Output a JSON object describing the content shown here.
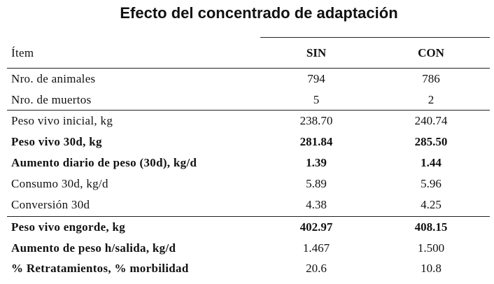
{
  "title": "Efecto del concentrado de adaptación",
  "columns": {
    "item": "Ítem",
    "sin": "SIN",
    "con": "CON"
  },
  "rows": [
    {
      "item": "Nro. de animales",
      "sin": "794",
      "con": "786",
      "bold": false
    },
    {
      "item": "Nro. de muertos",
      "sin": "5",
      "con": "2",
      "bold": false
    },
    {
      "item": "Peso vivo inicial, kg",
      "sin": "238.70",
      "con": "240.74",
      "bold": false
    },
    {
      "item": "Peso vivo 30d, kg",
      "sin": "281.84",
      "con": "285.50",
      "bold": true
    },
    {
      "item": "Aumento diario de peso (30d), kg/d",
      "sin": "1.39",
      "con": "1.44",
      "bold": true
    },
    {
      "item": "Consumo 30d, kg/d",
      "sin": "5.89",
      "con": "5.96",
      "bold": false
    },
    {
      "item": "Conversión 30d",
      "sin": "4.38",
      "con": "4.25",
      "bold": false
    },
    {
      "item": "Peso vivo engorde, kg",
      "sin": "402.97",
      "con": "408.15",
      "bold": true
    },
    {
      "item": "Aumento de peso h/salida, kg/d",
      "sin": "1.467",
      "con": "1.500",
      "bold": "item-only"
    },
    {
      "item": "% Retratamientos, % morbilidad",
      "sin": "20.6",
      "con": "10.8",
      "bold": "item-only"
    }
  ]
}
